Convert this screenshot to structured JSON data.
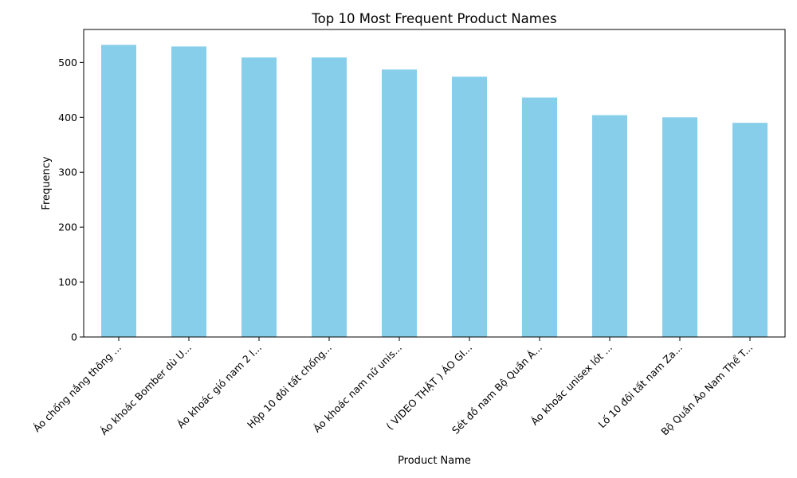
{
  "chart_data": {
    "type": "bar",
    "title": "Top 10 Most Frequent Product Names",
    "xlabel": "Product Name",
    "ylabel": "Frequency",
    "categories": [
      "Áo chống nắng thông ...",
      "Áo khoác Bomber dù U...",
      "Áo khoác gió nam 2 l...",
      "Hộp 10 đôi tất chống...",
      "Áo khoác nam nữ unis...",
      "( VIDEO THẬT ) ÁO GI...",
      "Sét đồ nam Bộ Quần Á...",
      "Áo khoác unisex lót ...",
      "Lố 10 đôi tất nam Za...",
      "Bộ Quần Áo Nam Thể T..."
    ],
    "values": [
      532,
      529,
      509,
      509,
      487,
      474,
      436,
      404,
      400,
      390
    ],
    "ylim": [
      0,
      560
    ],
    "yticks": [
      0,
      100,
      200,
      300,
      400,
      500
    ],
    "grid": false,
    "bar_color": "#87ceeb"
  }
}
